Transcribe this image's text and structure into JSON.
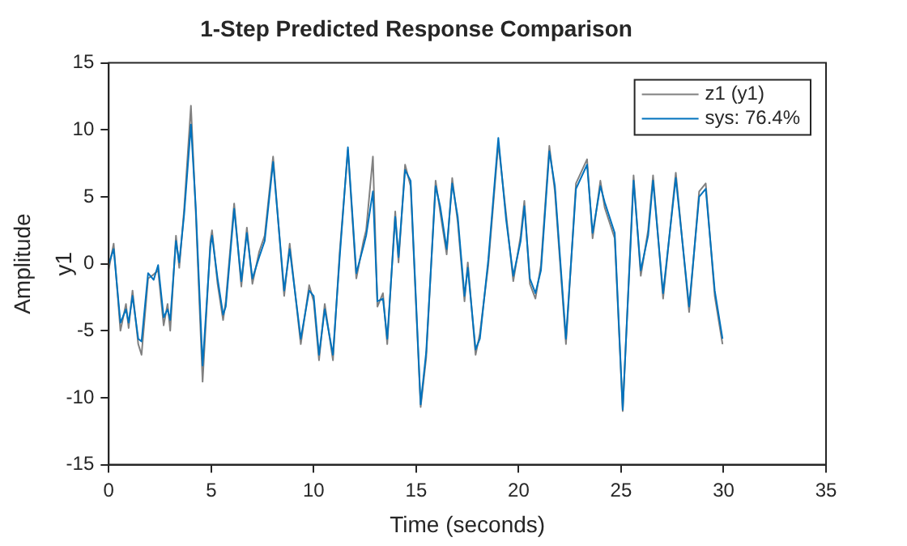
{
  "chart_data": {
    "type": "line",
    "title": "1-Step Predicted Response Comparison",
    "xlabel": "Time (seconds)",
    "ylabel": "Amplitude",
    "annotations": [
      "y1"
    ],
    "x": [
      0,
      0.24,
      0.57,
      0.84,
      0.97,
      1.16,
      1.44,
      1.6,
      1.92,
      2.19,
      2.41,
      2.68,
      2.87,
      3.0,
      3.28,
      3.44,
      3.68,
      4.01,
      4.25,
      4.58,
      4.96,
      5.04,
      5.31,
      5.58,
      5.71,
      6.12,
      6.47,
      6.74,
      7.01,
      7.34,
      7.61,
      8.02,
      8.56,
      8.83,
      9.37,
      9.78,
      10.0,
      10.26,
      10.54,
      10.94,
      11.27,
      11.67,
      12.08,
      12.43,
      12.56,
      12.89,
      13.11,
      13.38,
      13.59,
      13.98,
      14.14,
      14.46,
      14.73,
      15.22,
      15.49,
      15.95,
      16.17,
      16.49,
      16.76,
      17.03,
      17.36,
      17.52,
      17.9,
      18.11,
      18.52,
      19.01,
      19.39,
      19.74,
      20.1,
      20.28,
      20.55,
      20.82,
      21.09,
      21.5,
      21.77,
      22.31,
      22.8,
      23.34,
      23.61,
      23.99,
      24.2,
      24.69,
      25.08,
      25.61,
      25.96,
      26.32,
      26.56,
      27.05,
      27.67,
      28.32,
      28.81,
      29.13,
      29.57,
      29.95
    ],
    "series": [
      {
        "name": "z1 (y1)",
        "color": "#808080",
        "values": [
          -0.4,
          1.5,
          -5.0,
          -3.0,
          -4.8,
          -2.0,
          -6.0,
          -6.8,
          -1.1,
          -0.8,
          -0.5,
          -4.6,
          -3.0,
          -5.0,
          2.1,
          -0.3,
          4.1,
          11.8,
          3.7,
          -8.8,
          1.7,
          2.5,
          -1.5,
          -4.2,
          -2.8,
          4.5,
          -1.7,
          2.7,
          -1.5,
          0.9,
          2.1,
          8.0,
          -2.4,
          1.5,
          -6.0,
          -1.6,
          -2.8,
          -7.2,
          -3.0,
          -7.2,
          0.9,
          8.5,
          -1.1,
          1.7,
          2.5,
          8.0,
          -3.2,
          -2.2,
          -6.0,
          3.9,
          0.1,
          7.4,
          5.8,
          -10.7,
          -7.0,
          6.2,
          3.9,
          0.7,
          6.4,
          3.1,
          -2.8,
          0.1,
          -6.8,
          -5.2,
          -0.1,
          9.0,
          3.7,
          -1.3,
          2.1,
          4.7,
          -1.5,
          -2.6,
          -0.1,
          8.8,
          5.4,
          -6.0,
          6.0,
          7.8,
          1.9,
          6.2,
          4.2,
          1.9,
          -11.0,
          6.6,
          -0.9,
          2.5,
          6.6,
          -2.6,
          6.8,
          -3.6,
          5.4,
          6.0,
          -2.4,
          -6.0
        ]
      },
      {
        "name": "sys: 76.4%",
        "color": "#0072bd",
        "values": [
          0,
          1.1,
          -4.4,
          -3.4,
          -4.4,
          -2.4,
          -5.6,
          -5.8,
          -0.7,
          -1.2,
          -0.1,
          -4.0,
          -3.4,
          -4.2,
          1.7,
          0.1,
          3.7,
          10.4,
          4.1,
          -7.6,
          1.3,
          2.1,
          -1.1,
          -3.8,
          -3.2,
          4.1,
          -1.3,
          2.3,
          -1.1,
          0.5,
          1.7,
          7.6,
          -2.0,
          1.1,
          -5.6,
          -2.0,
          -2.4,
          -6.8,
          -3.4,
          -6.8,
          0.5,
          8.7,
          -0.7,
          1.3,
          2.1,
          5.4,
          -2.8,
          -2.6,
          -5.6,
          3.5,
          0.5,
          7.0,
          6.2,
          -10.5,
          -6.6,
          5.8,
          4.3,
          1.1,
          6.0,
          3.5,
          -2.4,
          -0.3,
          -6.4,
          -5.6,
          0.3,
          9.4,
          3.3,
          -0.9,
          1.7,
          4.3,
          -1.1,
          -2.2,
          -0.5,
          8.4,
          5.8,
          -5.6,
          5.6,
          7.4,
          2.3,
          5.8,
          4.6,
          2.3,
          -10.9,
          6.2,
          -0.5,
          2.1,
          6.2,
          -2.2,
          6.4,
          -3.2,
          5.0,
          5.6,
          -2.0,
          -5.6
        ]
      }
    ],
    "xlim": [
      0,
      35
    ],
    "xticks": [
      0,
      5,
      10,
      15,
      20,
      25,
      30,
      35
    ],
    "ylim": [
      -15,
      15
    ],
    "yticks": [
      -15,
      -10,
      -5,
      0,
      5,
      10,
      15
    ],
    "grid": false,
    "legend": "top right",
    "marker": "none",
    "line_style": "solid"
  }
}
